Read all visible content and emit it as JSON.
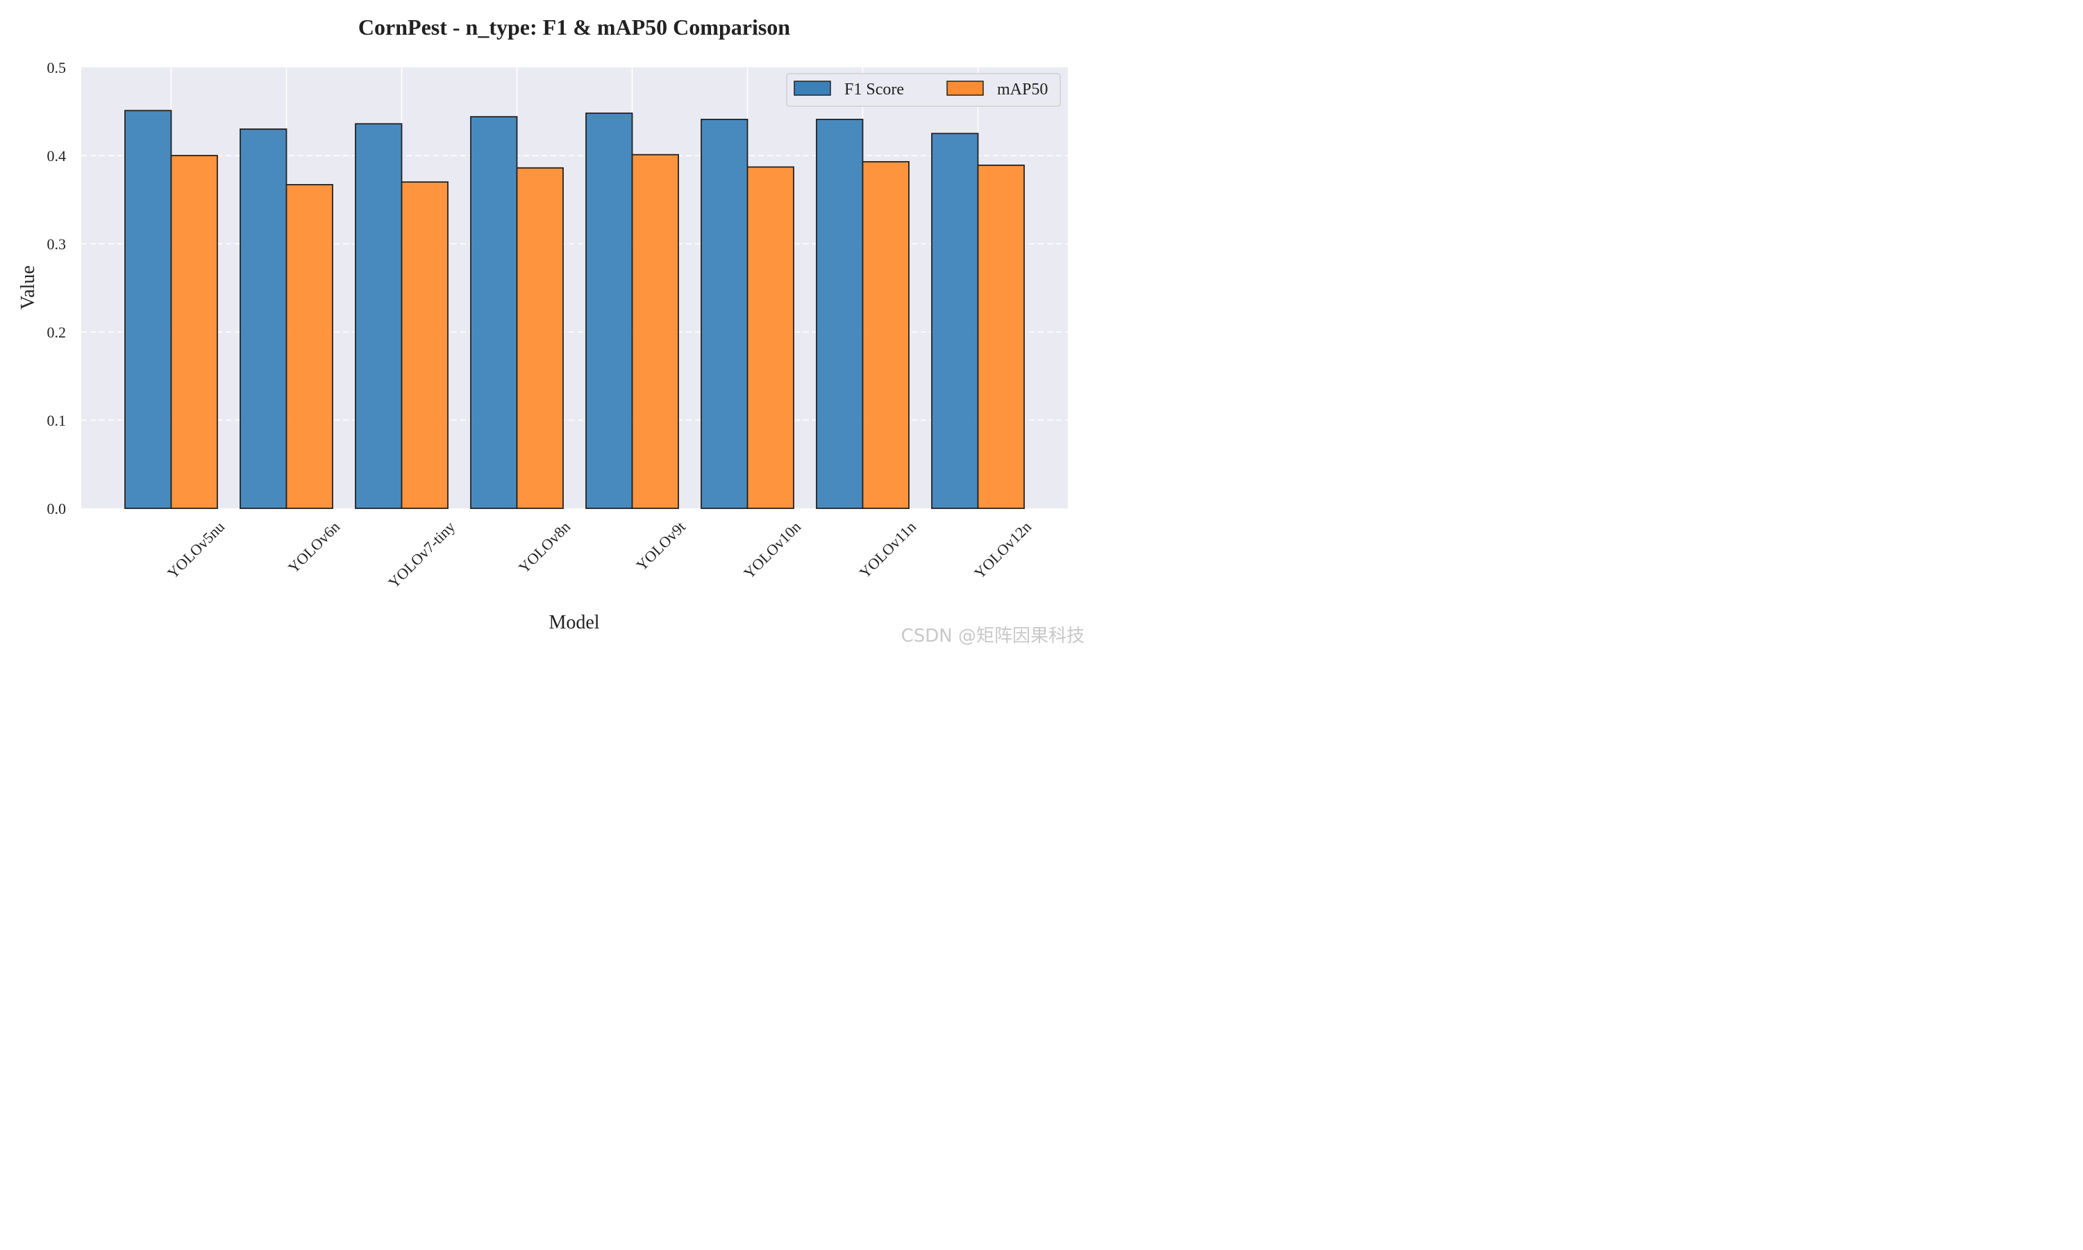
{
  "chart_data": {
    "type": "bar",
    "title": "CornPest - n_type: F1 & mAP50 Comparison",
    "xlabel": "Model",
    "ylabel": "Value",
    "ylim": [
      0,
      0.5
    ],
    "yticks": [
      "0.0",
      "0.1",
      "0.2",
      "0.3",
      "0.4",
      "0.5"
    ],
    "categories": [
      "YOLOv5nu",
      "YOLOv6n",
      "YOLOv7-tiny",
      "YOLOv8n",
      "YOLOv9t",
      "YOLOv10n",
      "YOLOv11n",
      "YOLOv12n"
    ],
    "series": [
      {
        "name": "F1 Score",
        "color": "#3a81ba",
        "values": [
          0.451,
          0.43,
          0.436,
          0.444,
          0.448,
          0.441,
          0.441,
          0.425
        ]
      },
      {
        "name": "mAP50",
        "color": "#ff8c2e",
        "values": [
          0.4,
          0.367,
          0.37,
          0.386,
          0.401,
          0.387,
          0.393,
          0.389
        ]
      }
    ],
    "grid": "horizontal-dashed",
    "legend": "top-right",
    "background": "#eaeaf2"
  },
  "watermark": "CSDN @矩阵因果科技"
}
